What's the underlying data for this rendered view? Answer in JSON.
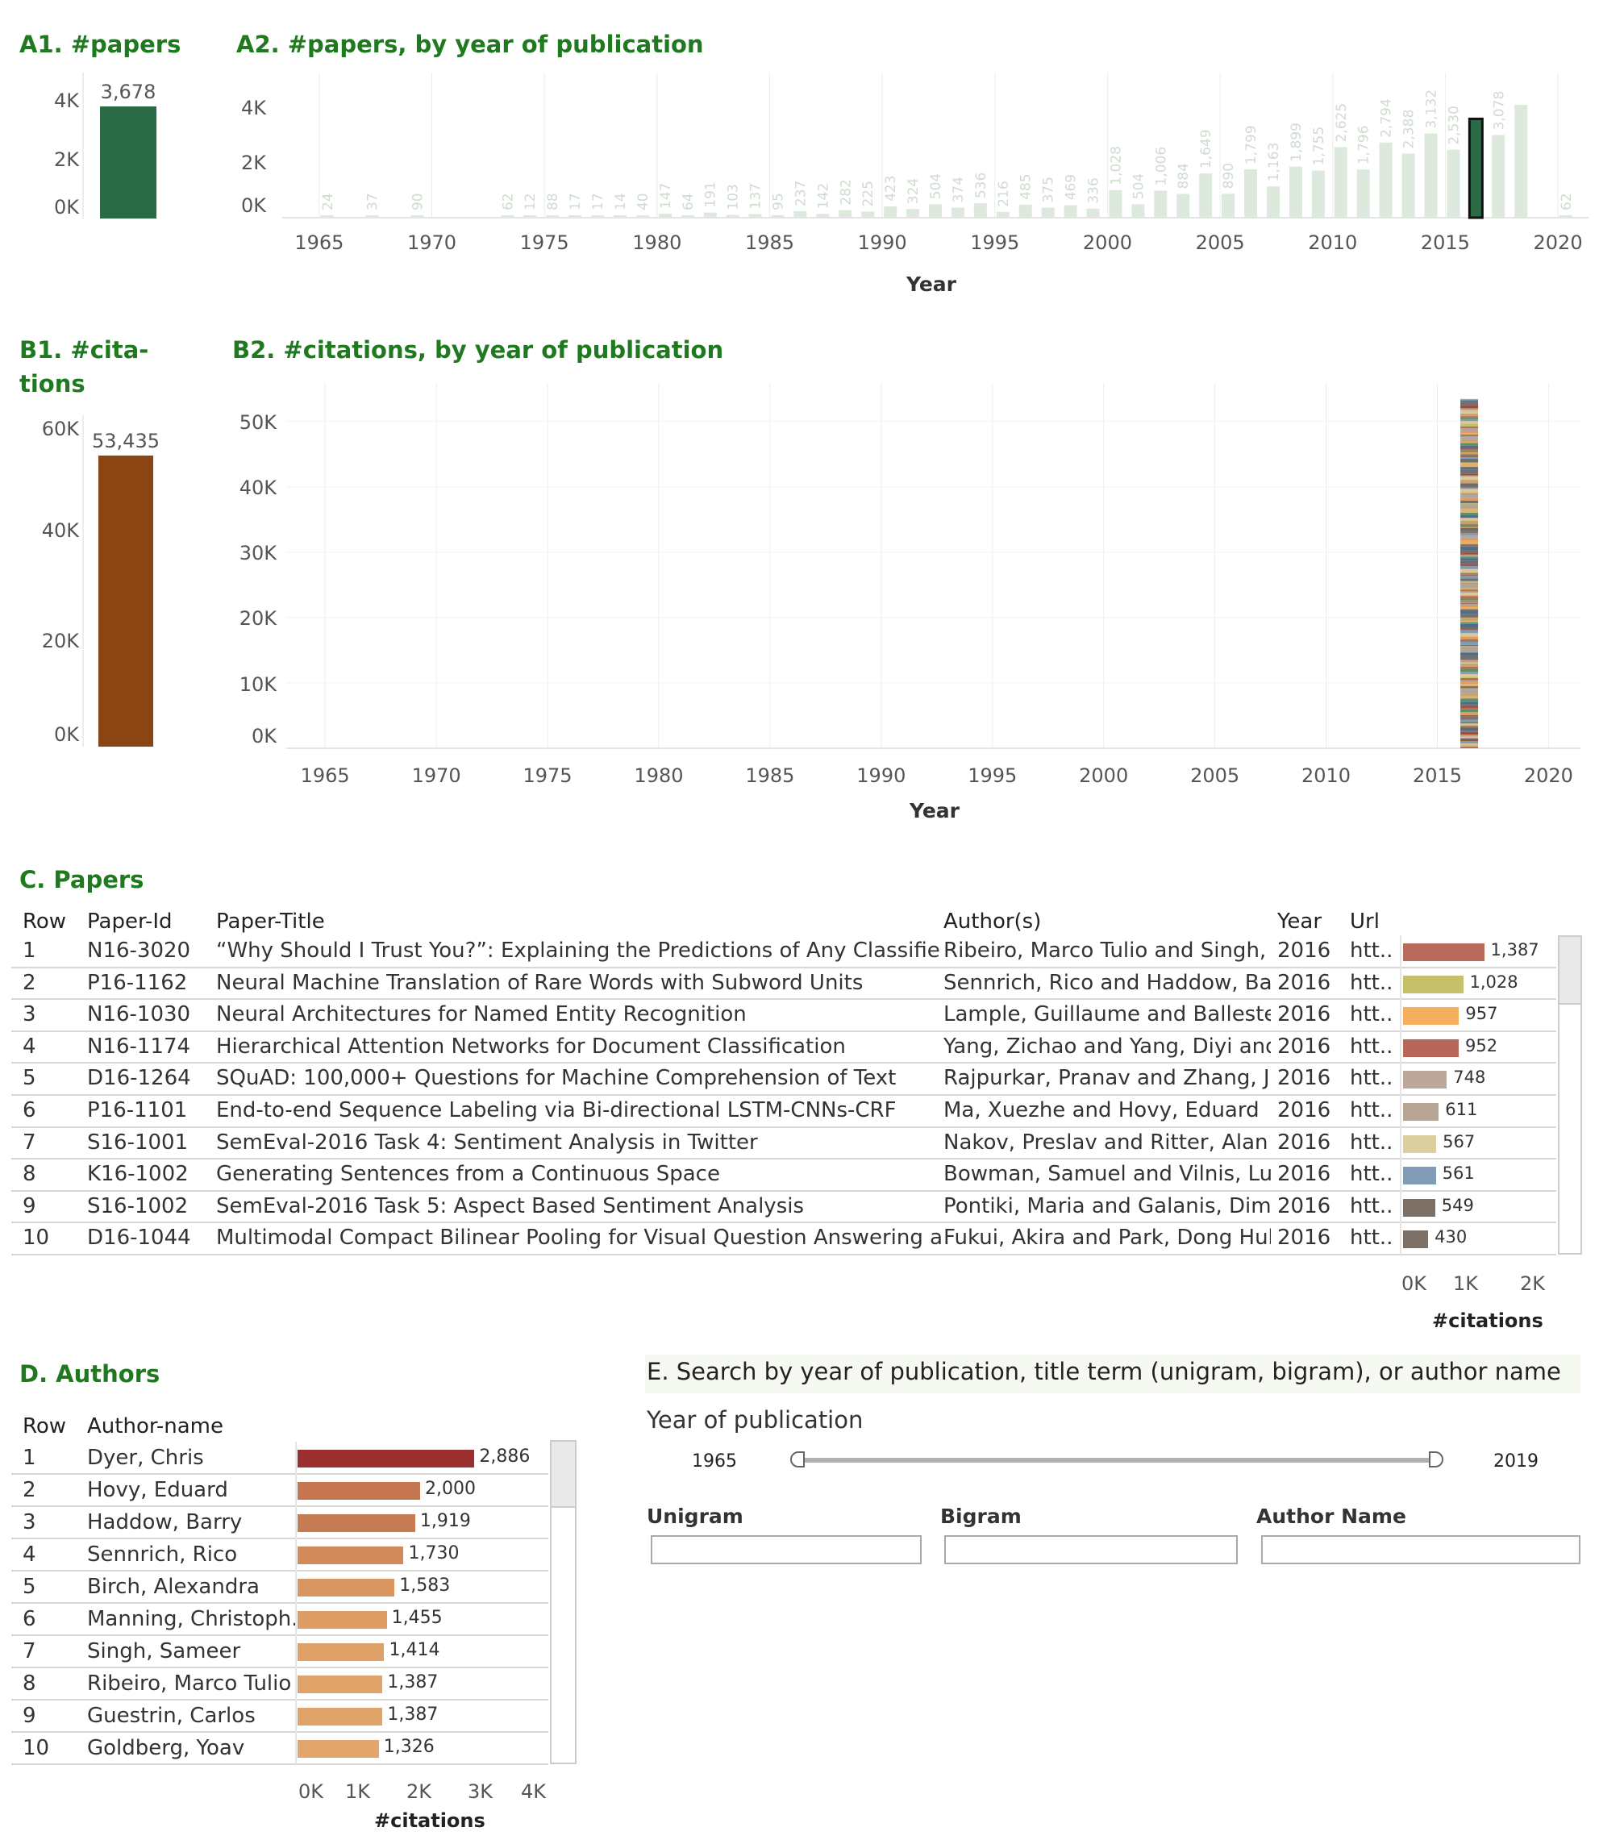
{
  "colors": {
    "title_green": "#1f7a1f",
    "papers_green": "#2a6b45",
    "papers_faded": "#dde9dd",
    "papers_faded_text": "#cfdccf",
    "citations_brown": "#8b4513",
    "grid": "#ececec"
  },
  "a1": {
    "title": "A1. #papers",
    "value": 3678,
    "value_label": "3,678",
    "ticks": [
      "4K",
      "2K",
      "0K"
    ],
    "ymax": 4000
  },
  "a2": {
    "title": "A2. #papers, by year of publication",
    "x_label": "Year",
    "x_ticks": [
      "1965",
      "1970",
      "1975",
      "1980",
      "1985",
      "1990",
      "1995",
      "2000",
      "2005",
      "2010",
      "2015",
      "2020"
    ],
    "y_ticks": [
      "4K",
      "2K",
      "0K"
    ]
  },
  "b1": {
    "title_line1": "B1. #cita-",
    "title_line2": "tions",
    "value": 53435,
    "value_label": "53,435",
    "ticks": [
      "60K",
      "40K",
      "20K",
      "0K"
    ],
    "ymax": 60000
  },
  "b2": {
    "title": "B2. #citations, by year of publication",
    "x_label": "Year",
    "x_ticks": [
      "1965",
      "1970",
      "1975",
      "1980",
      "1985",
      "1990",
      "1995",
      "2000",
      "2005",
      "2010",
      "2015",
      "2020"
    ],
    "y_ticks": [
      "50K",
      "40K",
      "30K",
      "20K",
      "10K",
      "0K"
    ]
  },
  "chart_data": [
    {
      "type": "bar",
      "title": "A1. #papers",
      "categories": [
        ""
      ],
      "values": [
        3678
      ],
      "ylim": [
        0,
        4000
      ]
    },
    {
      "type": "bar",
      "title": "A2. #papers, by year of publication",
      "xlabel": "Year",
      "ylabel": "#papers",
      "ylim": [
        0,
        4500
      ],
      "xlim": [
        1963,
        2021
      ],
      "selected_year": 2016,
      "x": [
        1965,
        1967,
        1969,
        1973,
        1974,
        1975,
        1976,
        1977,
        1978,
        1979,
        1980,
        1981,
        1982,
        1983,
        1984,
        1985,
        1986,
        1987,
        1988,
        1989,
        1990,
        1991,
        1992,
        1993,
        1994,
        1995,
        1996,
        1997,
        1998,
        1999,
        2000,
        2001,
        2002,
        2003,
        2004,
        2005,
        2006,
        2007,
        2008,
        2009,
        2010,
        2011,
        2012,
        2013,
        2014,
        2015,
        2016,
        2017,
        2018,
        2019,
        2020
      ],
      "values": [
        24,
        37,
        90,
        62,
        12,
        88,
        17,
        17,
        14,
        40,
        147,
        64,
        191,
        103,
        137,
        95,
        237,
        142,
        282,
        225,
        423,
        324,
        504,
        374,
        536,
        216,
        485,
        375,
        469,
        336,
        1028,
        504,
        1006,
        884,
        1649,
        890,
        1799,
        1163,
        1899,
        1755,
        2625,
        1796,
        2794,
        2388,
        3132,
        2530,
        3678,
        3078,
        4200,
        null,
        62
      ],
      "labels": [
        "24",
        "37",
        "90",
        "62",
        "12",
        "88",
        "17",
        "17",
        "14",
        "40",
        "147",
        "64",
        "191",
        "103",
        "137",
        "95",
        "237",
        "142",
        "282",
        "225",
        "423",
        "324",
        "504",
        "374",
        "536",
        "216",
        "485",
        "375",
        "469",
        "336",
        "1,028",
        "504",
        "1,006",
        "884",
        "1,649",
        "890",
        "1,799",
        "1,163",
        "1,899",
        "1,755",
        "2,625",
        "1,796",
        "2,794",
        "2,388",
        "3,132",
        "2,530",
        "",
        "3,078",
        "",
        "",
        "62"
      ]
    },
    {
      "type": "bar",
      "title": "B1. #citations",
      "categories": [
        ""
      ],
      "values": [
        53435
      ],
      "ylim": [
        0,
        60000
      ]
    },
    {
      "type": "bar",
      "title": "B2. #citations, by year of publication",
      "xlabel": "Year",
      "ylabel": "#citations",
      "ylim": [
        0,
        55000
      ],
      "xlim": [
        1963,
        2021
      ],
      "x": [
        2016
      ],
      "values": [
        53435
      ],
      "stacked": true
    },
    {
      "type": "bar",
      "title": "D. Authors",
      "xlabel": "#citations",
      "xlim": [
        0,
        4000
      ],
      "categories": [
        "Dyer, Chris",
        "Hovy, Eduard",
        "Haddow, Barry",
        "Sennrich, Rico",
        "Birch, Alexandra",
        "Manning, Christoph..",
        "Singh, Sameer",
        "Ribeiro, Marco Tulio",
        "Guestrin, Carlos",
        "Goldberg, Yoav"
      ],
      "values": [
        2886,
        2000,
        1919,
        1730,
        1583,
        1455,
        1414,
        1387,
        1387,
        1326
      ]
    }
  ],
  "papers": {
    "title": "C. Papers",
    "headers": {
      "row": "Row",
      "id": "Paper-Id",
      "title": "Paper-Title",
      "authors": "Author(s)",
      "year": "Year",
      "url": "Url"
    },
    "axis_ticks": [
      "0K",
      "1K",
      "2K"
    ],
    "axis_label": "#citations",
    "xmax": 2500,
    "rows": [
      {
        "row": "1",
        "id": "N16-3020",
        "title": "“Why Should I Trust You?”: Explaining the Predictions of Any Classifier",
        "authors": "Ribeiro, Marco Tulio and Singh, ..",
        "year": "2016",
        "url": "htt..",
        "cites": 1387,
        "cites_label": "1,387",
        "color": "#b86b5a"
      },
      {
        "row": "2",
        "id": "P16-1162",
        "title": "Neural Machine Translation of Rare Words with Subword Units",
        "authors": "Sennrich, Rico and Haddow, Bar..",
        "year": "2016",
        "url": "htt..",
        "cites": 1028,
        "cites_label": "1,028",
        "color": "#c4c16a"
      },
      {
        "row": "3",
        "id": "N16-1030",
        "title": "Neural Architectures for Named Entity Recognition",
        "authors": "Lample, Guillaume and Balleste..",
        "year": "2016",
        "url": "htt..",
        "cites": 957,
        "cites_label": "957",
        "color": "#f4ae5c"
      },
      {
        "row": "4",
        "id": "N16-1174",
        "title": "Hierarchical Attention Networks for Document Classification",
        "authors": "Yang, Zichao and Yang, Diyi and..",
        "year": "2016",
        "url": "htt..",
        "cites": 952,
        "cites_label": "952",
        "color": "#b8655a"
      },
      {
        "row": "5",
        "id": "D16-1264",
        "title": "SQuAD: 100,000+ Questions for Machine Comprehension of Text",
        "authors": "Rajpurkar, Pranav and Zhang, Ji..",
        "year": "2016",
        "url": "htt..",
        "cites": 748,
        "cites_label": "748",
        "color": "#bba89a"
      },
      {
        "row": "6",
        "id": "P16-1101",
        "title": "End-to-end Sequence Labeling via Bi-directional LSTM-CNNs-CRF",
        "authors": "Ma, Xuezhe and Hovy, Eduard",
        "year": "2016",
        "url": "htt..",
        "cites": 611,
        "cites_label": "611",
        "color": "#b9a594"
      },
      {
        "row": "7",
        "id": "S16-1001",
        "title": "SemEval-2016 Task 4: Sentiment Analysis in Twitter",
        "authors": "Nakov, Preslav and Ritter, Alan ..",
        "year": "2016",
        "url": "htt..",
        "cites": 567,
        "cites_label": "567",
        "color": "#dccf9f"
      },
      {
        "row": "8",
        "id": "K16-1002",
        "title": "Generating Sentences from a Continuous Space",
        "authors": "Bowman, Samuel and Vilnis, Lu..",
        "year": "2016",
        "url": "htt..",
        "cites": 561,
        "cites_label": "561",
        "color": "#7f9bb5"
      },
      {
        "row": "9",
        "id": "S16-1002",
        "title": "SemEval-2016 Task 5: Aspect Based Sentiment Analysis",
        "authors": "Pontiki, Maria and Galanis, Dim..",
        "year": "2016",
        "url": "htt..",
        "cites": 549,
        "cites_label": "549",
        "color": "#7b6f66"
      },
      {
        "row": "10",
        "id": "D16-1044",
        "title": "Multimodal Compact Bilinear Pooling for Visual Question Answering an..",
        "authors": "Fukui, Akira and Park, Dong Huk..",
        "year": "2016",
        "url": "htt..",
        "cites": 430,
        "cites_label": "430",
        "color": "#7b6f66"
      }
    ]
  },
  "authors": {
    "title": "D. Authors",
    "headers": {
      "row": "Row",
      "name": "Author-name"
    },
    "axis_ticks": [
      "0K",
      "1K",
      "2K",
      "3K",
      "4K"
    ],
    "axis_label": "#citations",
    "xmax": 4000,
    "rows": [
      {
        "row": "1",
        "name": "Dyer, Chris",
        "cites": 2886,
        "cites_label": "2,886",
        "color": "#9b2f2f"
      },
      {
        "row": "2",
        "name": "Hovy, Eduard",
        "cites": 2000,
        "cites_label": "2,000",
        "color": "#c57650"
      },
      {
        "row": "3",
        "name": "Haddow, Barry",
        "cites": 1919,
        "cites_label": "1,919",
        "color": "#c77b52"
      },
      {
        "row": "4",
        "name": "Sennrich, Rico",
        "cites": 1730,
        "cites_label": "1,730",
        "color": "#d38a5a"
      },
      {
        "row": "5",
        "name": "Birch, Alexandra",
        "cites": 1583,
        "cites_label": "1,583",
        "color": "#d99660"
      },
      {
        "row": "6",
        "name": "Manning, Christoph..",
        "cites": 1455,
        "cites_label": "1,455",
        "color": "#dd9d65"
      },
      {
        "row": "7",
        "name": "Singh, Sameer",
        "cites": 1414,
        "cites_label": "1,414",
        "color": "#dfa168"
      },
      {
        "row": "8",
        "name": "Ribeiro, Marco Tulio",
        "cites": 1387,
        "cites_label": "1,387",
        "color": "#e0a36a"
      },
      {
        "row": "9",
        "name": "Guestrin, Carlos",
        "cites": 1387,
        "cites_label": "1,387",
        "color": "#e0a36a"
      },
      {
        "row": "10",
        "name": "Goldberg, Yoav",
        "cites": 1326,
        "cites_label": "1,326",
        "color": "#e2a66c"
      }
    ]
  },
  "search": {
    "title": "E. Search by year of publication, title term (unigram, bigram), or  author name",
    "year_label": "Year of publication",
    "year_min": "1965",
    "year_max": "2019",
    "unigram_label": "Unigram",
    "bigram_label": "Bigram",
    "author_label": "Author Name",
    "unigram_value": "",
    "bigram_value": "",
    "author_value": ""
  }
}
